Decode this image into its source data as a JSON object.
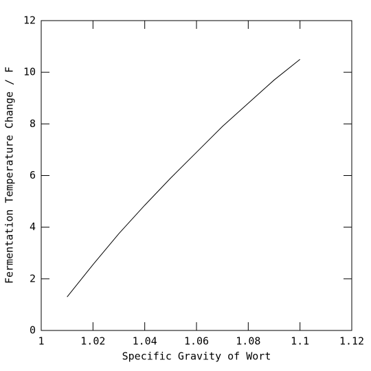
{
  "chart_data": {
    "type": "line",
    "x_label": "Specific Gravity of Wort",
    "y_label": "Fermentation Temperature Change / F",
    "x": [
      1.01,
      1.02,
      1.03,
      1.04,
      1.05,
      1.06,
      1.07,
      1.08,
      1.09,
      1.1
    ],
    "values": [
      1.3,
      2.55,
      3.75,
      4.85,
      5.9,
      6.9,
      7.9,
      8.8,
      9.7,
      10.5
    ],
    "color": "#000000",
    "xlim": [
      1,
      1.12
    ],
    "xticks": [
      1,
      1.02,
      1.04,
      1.06,
      1.08,
      1.1,
      1.12
    ],
    "ylim": [
      0,
      12
    ],
    "yticks": [
      0,
      2,
      4,
      6,
      8,
      10,
      12
    ]
  }
}
